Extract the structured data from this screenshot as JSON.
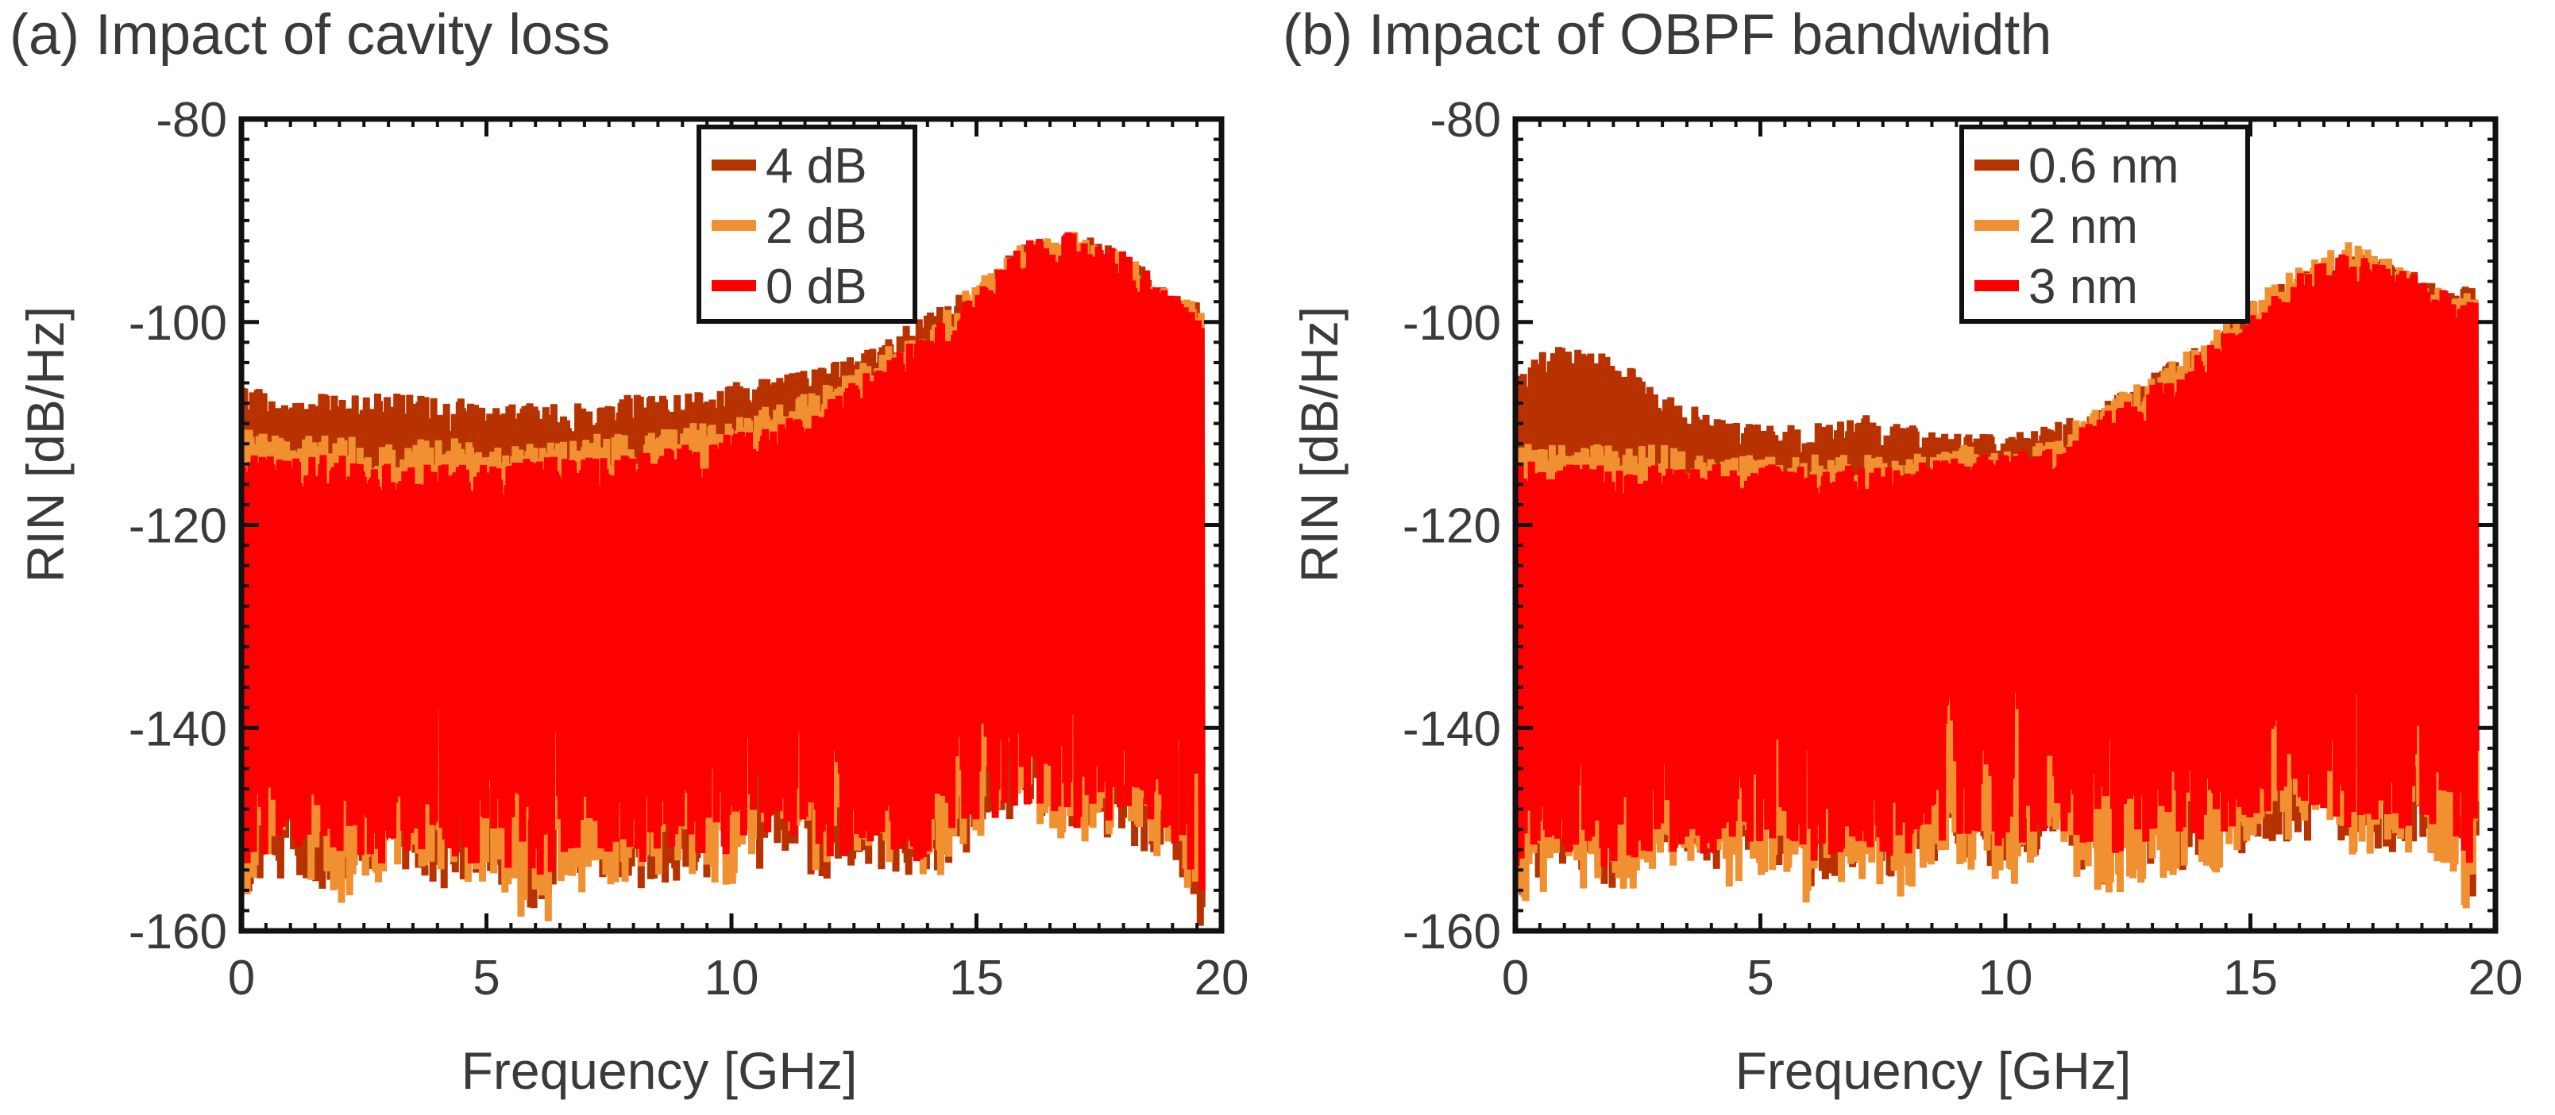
{
  "chart_data": [
    {
      "type": "line",
      "title": "(a) Impact of cavity loss",
      "xlabel": "Frequency [GHz]",
      "ylabel": "RIN [dB/Hz]",
      "xlim": [
        0,
        20
      ],
      "ylim": [
        -160,
        -80
      ],
      "xticks": [
        0,
        5,
        10,
        15,
        20
      ],
      "yticks": [
        -80,
        -100,
        -120,
        -140,
        -160
      ],
      "legend_position": "top-center",
      "series": [
        {
          "name": "4 dB",
          "color": "#b83200",
          "x": [
            0,
            1,
            2,
            3,
            4,
            5,
            6,
            7,
            8,
            9,
            10,
            11,
            12,
            13,
            14,
            15,
            16,
            17,
            18,
            19,
            19.6
          ],
          "upper": [
            -106,
            -107,
            -107,
            -107,
            -107,
            -108,
            -108,
            -108,
            -107,
            -107,
            -106,
            -105,
            -104,
            -102,
            -99,
            -96,
            -92,
            -91,
            -93,
            -97,
            -98
          ],
          "lower": [
            -160,
            -154,
            -157,
            -153,
            -156,
            -155,
            -158,
            -154,
            -156,
            -155,
            -157,
            -153,
            -156,
            -154,
            -155,
            -152,
            -150,
            -151,
            -152,
            -153,
            -160
          ]
        },
        {
          "name": "2 dB",
          "color": "#f09030",
          "x": [
            0,
            1,
            2,
            3,
            4,
            5,
            6,
            7,
            8,
            9,
            10,
            11,
            12,
            13,
            14,
            15,
            16,
            17,
            18,
            19,
            19.6
          ],
          "upper": [
            -110,
            -111,
            -111,
            -112,
            -111,
            -112,
            -112,
            -111,
            -111,
            -110,
            -109,
            -108,
            -106,
            -103,
            -100,
            -96,
            -92,
            -91,
            -93,
            -97,
            -98
          ],
          "lower": [
            -157,
            -153,
            -158,
            -155,
            -154,
            -156,
            -160,
            -157,
            -155,
            -154,
            -156,
            -152,
            -155,
            -153,
            -156,
            -151,
            -150,
            -152,
            -151,
            -154,
            -158
          ]
        },
        {
          "name": "0 dB",
          "color": "#ff0000",
          "x": [
            0,
            1,
            2,
            3,
            4,
            5,
            6,
            7,
            8,
            9,
            10,
            11,
            12,
            13,
            14,
            15,
            16,
            17,
            18,
            19,
            19.6
          ],
          "upper": [
            -113,
            -113,
            -113,
            -114,
            -114,
            -114,
            -113,
            -113,
            -113,
            -112,
            -111,
            -110,
            -107,
            -104,
            -101,
            -97,
            -92,
            -91,
            -93,
            -97,
            -99
          ],
          "lower": [
            -155,
            -152,
            -156,
            -153,
            -152,
            -154,
            -155,
            -153,
            -154,
            -152,
            -153,
            -151,
            -153,
            -152,
            -154,
            -150,
            -148,
            -150,
            -150,
            -152,
            -156
          ]
        }
      ]
    },
    {
      "type": "line",
      "title": "(b) Impact of OBPF bandwidth",
      "xlabel": "Frequency [GHz]",
      "ylabel": "RIN [dB/Hz]",
      "xlim": [
        0,
        20
      ],
      "ylim": [
        -160,
        -80
      ],
      "xticks": [
        0,
        5,
        10,
        15,
        20
      ],
      "yticks": [
        -80,
        -100,
        -120,
        -140,
        -160
      ],
      "legend_position": "top-center",
      "series": [
        {
          "name": "0.6 nm",
          "color": "#b83200",
          "x": [
            0,
            1,
            2,
            3,
            4,
            5,
            6,
            7,
            8,
            9,
            10,
            11,
            12,
            13,
            14,
            15,
            16,
            17,
            18,
            19,
            19.6
          ],
          "upper": [
            -104,
            -102,
            -103,
            -107,
            -109,
            -110,
            -110,
            -109,
            -110,
            -111,
            -111,
            -110,
            -108,
            -105,
            -102,
            -98,
            -95,
            -93,
            -94,
            -97,
            -96
          ],
          "lower": [
            -157,
            -154,
            -156,
            -152,
            -155,
            -153,
            -156,
            -154,
            -155,
            -153,
            -155,
            -152,
            -156,
            -154,
            -155,
            -152,
            -151,
            -152,
            -153,
            -154,
            -158
          ]
        },
        {
          "name": "2 nm",
          "color": "#f09030",
          "x": [
            0,
            1,
            2,
            3,
            4,
            5,
            6,
            7,
            8,
            9,
            10,
            11,
            12,
            13,
            14,
            15,
            16,
            17,
            18,
            19,
            19.6
          ],
          "upper": [
            -112,
            -112,
            -112,
            -112,
            -113,
            -113,
            -113,
            -113,
            -113,
            -112,
            -112,
            -111,
            -108,
            -105,
            -102,
            -98,
            -94,
            -92,
            -94,
            -97,
            -97
          ],
          "lower": [
            -160,
            -155,
            -158,
            -153,
            -156,
            -155,
            -158,
            -155,
            -157,
            -154,
            -156,
            -153,
            -157,
            -155,
            -156,
            -152,
            -151,
            -153,
            -152,
            -155,
            -160
          ]
        },
        {
          "name": "3 nm",
          "color": "#ff0000",
          "x": [
            0,
            1,
            2,
            3,
            4,
            5,
            6,
            7,
            8,
            9,
            10,
            11,
            12,
            13,
            14,
            15,
            16,
            17,
            18,
            19,
            19.6
          ],
          "upper": [
            -113,
            -114,
            -114,
            -114,
            -114,
            -114,
            -114,
            -114,
            -114,
            -113,
            -113,
            -112,
            -109,
            -106,
            -103,
            -99,
            -95,
            -93,
            -94,
            -97,
            -98
          ],
          "lower": [
            -154,
            -152,
            -155,
            -152,
            -153,
            -152,
            -154,
            -152,
            -153,
            -151,
            -152,
            -150,
            -153,
            -151,
            -152,
            -149,
            -148,
            -150,
            -150,
            -152,
            -155
          ]
        }
      ]
    }
  ]
}
